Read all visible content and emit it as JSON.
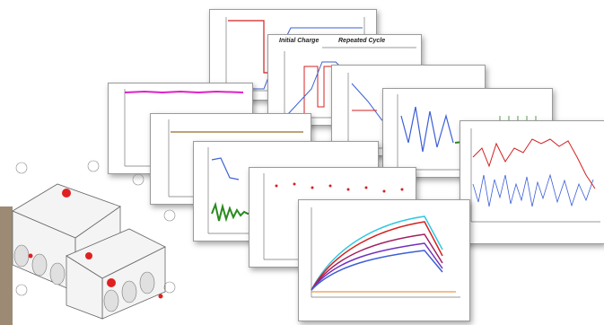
{
  "collage": {
    "description_labels": {
      "initial_charge": "Initial Charge",
      "repeated_cycle": "Repeated Cycle"
    },
    "colors": {
      "red_line": "#d42020",
      "blue_line": "#3c5fd6",
      "green_line": "#2a8a1e",
      "magenta_line": "#e020c8",
      "brown_line": "#9a6a2a",
      "cyan_line": "#30c8e0",
      "purple_line": "#7030c0",
      "orange_line": "#e08020"
    },
    "icons": {
      "battery_schematic": "battery-pack-schematic"
    }
  }
}
